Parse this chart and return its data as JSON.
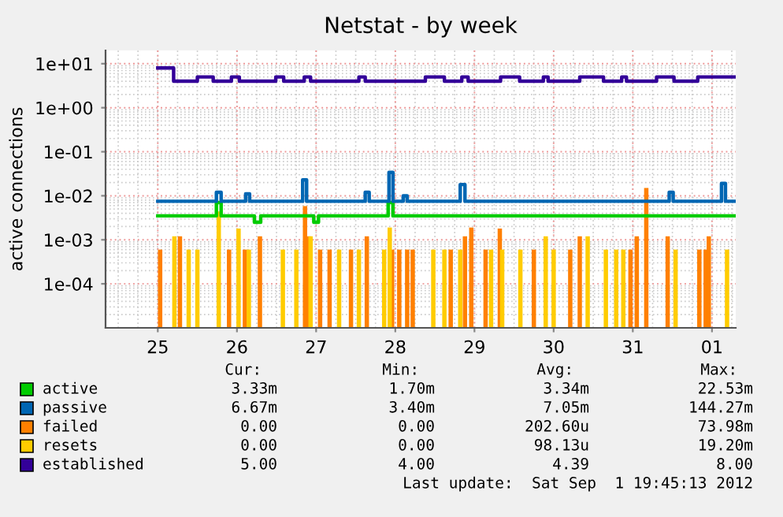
{
  "chart_data": {
    "type": "step",
    "title": "Netstat - by week",
    "ylabel": "active connections",
    "log": "y",
    "grid": true,
    "legend": "bottom left",
    "line_style": "solid",
    "marker": "none",
    "xlim": [
      "2012-08-24T08:10",
      "2012-09-01T07:12"
    ],
    "xticks": [
      {
        "value": "2012-08-25",
        "label": "25"
      },
      {
        "value": "2012-08-26",
        "label": "26"
      },
      {
        "value": "2012-08-27",
        "label": "27"
      },
      {
        "value": "2012-08-28",
        "label": "28"
      },
      {
        "value": "2012-08-29",
        "label": "29"
      },
      {
        "value": "2012-08-30",
        "label": "30"
      },
      {
        "value": "2012-08-31",
        "label": "31"
      },
      {
        "value": "2012-09-01",
        "label": "01"
      }
    ],
    "ylim": [
      1e-05,
      20
    ],
    "yticks": [
      {
        "value": 10,
        "label": "1e+01"
      },
      {
        "value": 1,
        "label": "1e+00"
      },
      {
        "value": 0.1,
        "label": "1e-01"
      },
      {
        "value": 0.01,
        "label": "1e-02"
      },
      {
        "value": 0.001,
        "label": "1e-03"
      },
      {
        "value": 0.0001,
        "label": "1e-04"
      }
    ],
    "series": [
      {
        "name": "active",
        "color": "#00cc00",
        "x": [
          "2012-08-25T00:00",
          "2012-08-25T17:46",
          "2012-08-25T19:12",
          "2012-08-26T05:17",
          "2012-08-26T07:12",
          "2012-08-26T23:17",
          "2012-08-27T00:43",
          "2012-08-27T21:50",
          "2012-08-27T23:17",
          "2012-09-01T06:43"
        ],
        "values": [
          0.0035,
          0.007,
          0.0035,
          0.0025,
          0.0035,
          0.0025,
          0.0035,
          0.007,
          0.0035,
          0.0035
        ]
      },
      {
        "name": "passive",
        "color": "#0066b3",
        "x": [
          "2012-08-25T00:00",
          "2012-08-25T17:46",
          "2012-08-25T19:12",
          "2012-08-26T02:38",
          "2012-08-26T03:50",
          "2012-08-26T19:55",
          "2012-08-26T21:07",
          "2012-08-27T14:53",
          "2012-08-27T16:05",
          "2012-08-27T22:05",
          "2012-08-27T23:17",
          "2012-08-28T02:24",
          "2012-08-28T03:36",
          "2012-08-28T19:41",
          "2012-08-28T21:07",
          "2012-08-31T11:02",
          "2012-08-31T12:14",
          "2012-09-01T02:53",
          "2012-09-01T04:05",
          "2012-09-01T06:43"
        ],
        "values": [
          0.0075,
          0.012,
          0.0075,
          0.011,
          0.0075,
          0.023,
          0.0075,
          0.012,
          0.0075,
          0.034,
          0.0075,
          0.01,
          0.0075,
          0.018,
          0.0075,
          0.012,
          0.0075,
          0.019,
          0.0075,
          0.0075
        ]
      },
      {
        "name": "failed",
        "color": "#ff8000",
        "type": "bar",
        "x": [
          "2012-08-25T00:43",
          "2012-08-25T06:43",
          "2012-08-25T21:36",
          "2012-08-26T02:24",
          "2012-08-26T06:58",
          "2012-08-26T20:38",
          "2012-08-26T21:50",
          "2012-08-27T01:12",
          "2012-08-27T04:05",
          "2012-08-27T10:34",
          "2012-08-27T15:22",
          "2012-08-27T23:02",
          "2012-08-28T01:12",
          "2012-08-28T03:36",
          "2012-08-28T05:17",
          "2012-08-28T16:48",
          "2012-08-28T21:07",
          "2012-08-28T23:02",
          "2012-08-29T03:22",
          "2012-08-29T07:41",
          "2012-08-29T18:00",
          "2012-08-30T05:02",
          "2012-08-30T07:55",
          "2012-08-30T23:17",
          "2012-08-31T01:12",
          "2012-08-31T04:05",
          "2012-08-31T10:34",
          "2012-08-31T20:10",
          "2012-08-31T22:05",
          "2012-08-31T23:02"
        ],
        "values": [
          0.0006,
          0.0012,
          0.0006,
          0.0006,
          0.0012,
          0.0058,
          0.0012,
          0.0006,
          0.0006,
          0.0006,
          0.0012,
          0.0006,
          0.0006,
          0.0006,
          0.0006,
          0.0006,
          0.0012,
          0.0019,
          0.0006,
          0.0018,
          0.0006,
          0.0006,
          0.0012,
          0.0006,
          0.0012,
          0.015,
          0.0012,
          0.0006,
          0.0006,
          0.0012
        ]
      },
      {
        "name": "resets",
        "color": "#ffcc00",
        "type": "bar",
        "x": [
          "2012-08-25T05:02",
          "2012-08-25T09:22",
          "2012-08-25T12:00",
          "2012-08-25T18:29",
          "2012-08-26T00:29",
          "2012-08-26T03:36",
          "2012-08-26T13:55",
          "2012-08-26T18:00",
          "2012-08-26T22:19",
          "2012-08-27T06:58",
          "2012-08-27T12:58",
          "2012-08-27T20:38",
          "2012-08-27T22:19",
          "2012-08-28T11:31",
          "2012-08-28T14:53",
          "2012-08-28T19:41",
          "2012-08-29T05:02",
          "2012-08-29T08:24",
          "2012-08-29T13:55",
          "2012-08-29T21:36",
          "2012-08-30T00:00",
          "2012-08-30T10:19",
          "2012-08-30T15:50",
          "2012-08-30T18:58",
          "2012-08-30T21:07",
          "2012-08-31T12:58",
          "2012-09-01T04:34"
        ],
        "values": [
          0.0012,
          0.0006,
          0.0006,
          0.0044,
          0.0018,
          0.0006,
          0.0006,
          0.0006,
          0.0012,
          0.0006,
          0.0006,
          0.0006,
          0.0019,
          0.0006,
          0.0006,
          0.0006,
          0.0006,
          0.0006,
          0.0006,
          0.0012,
          0.0006,
          0.0012,
          0.0006,
          0.0006,
          0.0006,
          0.0006,
          0.0006
        ]
      },
      {
        "name": "established",
        "color": "#330099",
        "x": [
          "2012-08-25T00:00",
          "2012-08-25T04:48",
          "2012-08-25T12:00",
          "2012-08-25T16:48",
          "2012-08-25T22:19",
          "2012-08-26T00:43",
          "2012-08-26T11:46",
          "2012-08-26T14:10",
          "2012-08-26T20:24",
          "2012-08-26T22:19",
          "2012-08-27T12:58",
          "2012-08-27T14:53",
          "2012-08-28T09:07",
          "2012-08-28T14:53",
          "2012-08-28T20:10",
          "2012-08-28T22:05",
          "2012-08-29T07:55",
          "2012-08-29T13:41",
          "2012-08-29T20:53",
          "2012-08-29T22:19",
          "2012-08-30T07:55",
          "2012-08-30T15:07",
          "2012-08-30T20:38",
          "2012-08-30T22:05",
          "2012-08-31T07:12",
          "2012-08-31T12:29",
          "2012-08-31T19:41",
          "2012-09-01T06:43"
        ],
        "values": [
          8,
          4,
          5,
          4,
          5,
          4,
          5,
          4,
          5,
          4,
          5,
          4,
          5,
          4,
          5,
          4,
          5,
          4,
          5,
          4,
          5,
          4,
          5,
          4,
          5,
          4,
          5,
          5
        ]
      }
    ],
    "annotations": [
      "Cur:",
      "Min:",
      "Avg:",
      "Max:",
      "3.33m",
      "1.70m",
      "3.34m",
      "22.53m",
      "6.67m",
      "3.40m",
      "7.05m",
      "144.27m",
      "0.00",
      "0.00",
      "202.60u",
      "73.98m",
      "0.00",
      "0.00",
      "98.13u",
      "19.20m",
      "5.00",
      "4.00",
      "4.39",
      "8.00",
      "Last update:  Sat Sep  1 19:45:13 2012"
    ]
  }
}
